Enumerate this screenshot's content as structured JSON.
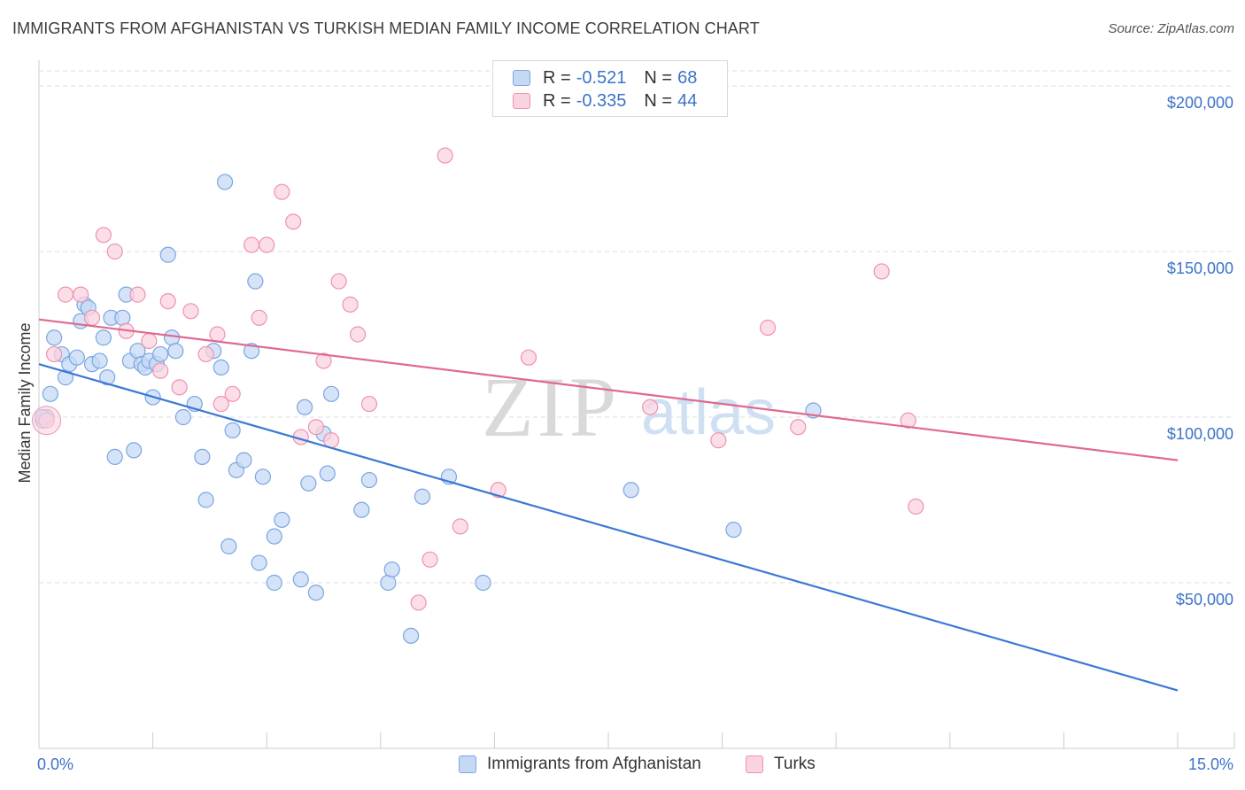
{
  "title": "IMMIGRANTS FROM AFGHANISTAN VS TURKISH MEDIAN FAMILY INCOME CORRELATION CHART",
  "source": "Source: ZipAtlas.com",
  "watermark": {
    "zip": "ZIP",
    "atlas": "atlas"
  },
  "legend": {
    "r_label": "R =",
    "n_label": "N =",
    "rows": [
      {
        "r": "-0.521",
        "n": "68",
        "color": "#7aa6e0",
        "fill": "#c5d9f5"
      },
      {
        "r": "-0.335",
        "n": "44",
        "color": "#ee92b0",
        "fill": "#fad3e0"
      }
    ]
  },
  "bottom_legend": [
    {
      "label": "Immigrants from Afghanistan",
      "color": "#7aa6e0",
      "fill": "#c5d9f5"
    },
    {
      "label": "Turks",
      "color": "#ee92b0",
      "fill": "#fad3e0"
    }
  ],
  "chart_data": {
    "type": "scatter",
    "title": "IMMIGRANTS FROM AFGHANISTAN VS TURKISH MEDIAN FAMILY INCOME CORRELATION CHART",
    "xlabel": "",
    "ylabel": "Median Family Income",
    "xlim": [
      0,
      15
    ],
    "ylim": [
      0,
      205000
    ],
    "x_tick_labels": [
      "0.0%",
      "15.0%"
    ],
    "y_tick_labels": [
      "$50,000",
      "$100,000",
      "$150,000",
      "$200,000"
    ],
    "y_ticks": [
      50000,
      100000,
      150000,
      200000
    ],
    "grid": true,
    "series": [
      {
        "name": "Immigrants from Afghanistan",
        "color": "#3b78d6",
        "fill": "#c5d9f5",
        "stroke": "#7aa6e0",
        "trend": {
          "x": [
            0,
            15
          ],
          "y": [
            116000,
            17500
          ]
        },
        "points": [
          [
            0.05,
            99000
          ],
          [
            0.1,
            100000
          ],
          [
            0.15,
            107000
          ],
          [
            0.2,
            124000
          ],
          [
            0.3,
            119000
          ],
          [
            0.35,
            112000
          ],
          [
            0.4,
            116000
          ],
          [
            0.5,
            118000
          ],
          [
            0.55,
            129000
          ],
          [
            0.6,
            134000
          ],
          [
            0.65,
            133000
          ],
          [
            0.7,
            116000
          ],
          [
            0.8,
            117000
          ],
          [
            0.85,
            124000
          ],
          [
            0.9,
            112000
          ],
          [
            0.95,
            130000
          ],
          [
            1.0,
            88000
          ],
          [
            1.1,
            130000
          ],
          [
            1.15,
            137000
          ],
          [
            1.2,
            117000
          ],
          [
            1.25,
            90000
          ],
          [
            1.3,
            120000
          ],
          [
            1.35,
            116000
          ],
          [
            1.4,
            115000
          ],
          [
            1.45,
            117000
          ],
          [
            1.5,
            106000
          ],
          [
            1.55,
            116000
          ],
          [
            1.6,
            119000
          ],
          [
            1.7,
            149000
          ],
          [
            1.75,
            124000
          ],
          [
            1.8,
            120000
          ],
          [
            1.9,
            100000
          ],
          [
            2.05,
            104000
          ],
          [
            2.15,
            88000
          ],
          [
            2.2,
            75000
          ],
          [
            2.3,
            120000
          ],
          [
            2.4,
            115000
          ],
          [
            2.45,
            171000
          ],
          [
            2.5,
            61000
          ],
          [
            2.55,
            96000
          ],
          [
            2.6,
            84000
          ],
          [
            2.7,
            87000
          ],
          [
            2.8,
            120000
          ],
          [
            2.85,
            141000
          ],
          [
            2.9,
            56000
          ],
          [
            2.95,
            82000
          ],
          [
            3.1,
            50000
          ],
          [
            3.1,
            64000
          ],
          [
            3.2,
            69000
          ],
          [
            3.45,
            51000
          ],
          [
            3.5,
            103000
          ],
          [
            3.55,
            80000
          ],
          [
            3.65,
            47000
          ],
          [
            3.75,
            95000
          ],
          [
            3.8,
            83000
          ],
          [
            3.85,
            107000
          ],
          [
            4.25,
            72000
          ],
          [
            4.35,
            81000
          ],
          [
            4.6,
            50000
          ],
          [
            4.65,
            54000
          ],
          [
            4.9,
            34000
          ],
          [
            5.05,
            76000
          ],
          [
            5.4,
            82000
          ],
          [
            5.85,
            50000
          ],
          [
            7.8,
            78000
          ],
          [
            9.15,
            66000
          ],
          [
            10.2,
            102000
          ],
          [
            0.05,
            100000
          ]
        ]
      },
      {
        "name": "Turks",
        "color": "#e06891",
        "fill": "#fad3e0",
        "stroke": "#ee92b0",
        "trend": {
          "x": [
            0,
            15
          ],
          "y": [
            129500,
            87000
          ]
        },
        "points": [
          [
            0.1,
            99000
          ],
          [
            0.2,
            119000
          ],
          [
            0.35,
            137000
          ],
          [
            0.55,
            137000
          ],
          [
            0.7,
            130000
          ],
          [
            0.85,
            155000
          ],
          [
            1.0,
            150000
          ],
          [
            1.15,
            126000
          ],
          [
            1.3,
            137000
          ],
          [
            1.45,
            123000
          ],
          [
            1.6,
            114000
          ],
          [
            1.7,
            135000
          ],
          [
            1.85,
            109000
          ],
          [
            2.0,
            132000
          ],
          [
            2.2,
            119000
          ],
          [
            2.35,
            125000
          ],
          [
            2.4,
            104000
          ],
          [
            2.55,
            107000
          ],
          [
            2.8,
            152000
          ],
          [
            2.9,
            130000
          ],
          [
            3.0,
            152000
          ],
          [
            3.2,
            168000
          ],
          [
            3.35,
            159000
          ],
          [
            3.45,
            94000
          ],
          [
            3.65,
            97000
          ],
          [
            3.75,
            117000
          ],
          [
            3.85,
            93000
          ],
          [
            3.95,
            141000
          ],
          [
            4.1,
            134000
          ],
          [
            4.2,
            125000
          ],
          [
            4.35,
            104000
          ],
          [
            5.0,
            44000
          ],
          [
            5.15,
            57000
          ],
          [
            5.35,
            179000
          ],
          [
            5.55,
            67000
          ],
          [
            6.05,
            78000
          ],
          [
            6.45,
            118000
          ],
          [
            8.05,
            103000
          ],
          [
            8.95,
            93000
          ],
          [
            9.6,
            127000
          ],
          [
            10.0,
            97000
          ],
          [
            11.1,
            144000
          ],
          [
            11.45,
            99000
          ],
          [
            11.55,
            73000
          ]
        ]
      }
    ]
  }
}
